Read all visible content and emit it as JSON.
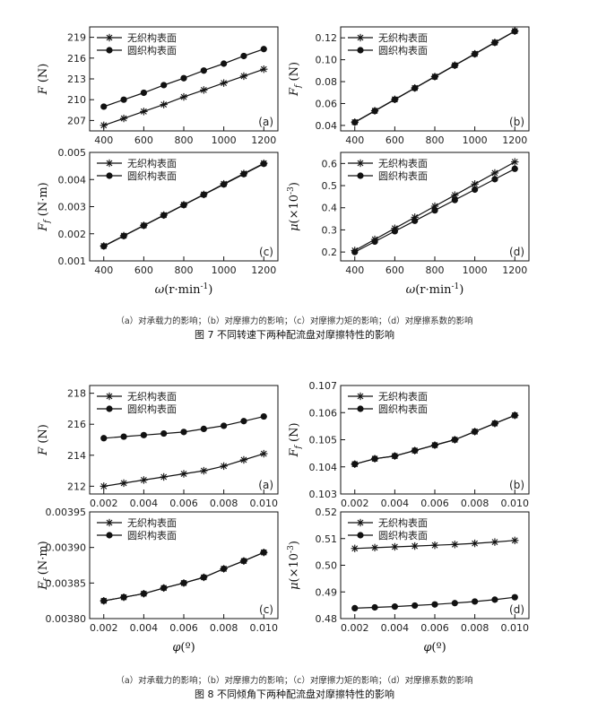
{
  "figures": [
    {
      "caption_sub": "（a）对承载力的影响；（b）对摩擦力的影响；（c）对摩擦力矩的影响；（d）对摩擦系数的影响",
      "caption_main": "图 7 不同转速下两种配流盘对摩擦特性的影响"
    },
    {
      "caption_sub": "（a）对承载力的影响；（b）对摩擦力的影响；（c）对摩擦力矩的影响；（d）对摩擦系数的影响",
      "caption_main": "图 8 不同倾角下两种配流盘对摩擦特性的影响"
    }
  ],
  "chart_data": [
    {
      "id": "f7a",
      "panel_label": "(a)",
      "type": "line",
      "ylabel": "F (N)",
      "xlabel": "",
      "x": [
        400,
        500,
        600,
        700,
        800,
        900,
        1000,
        1100,
        1200
      ],
      "xticks": [
        400,
        600,
        800,
        1000,
        1200
      ],
      "yticks": [
        207,
        210,
        213,
        216,
        219
      ],
      "ylim": [
        205.5,
        220.5
      ],
      "legend_position": "top-left",
      "series": [
        {
          "name": "无织构表面",
          "marker": "star",
          "values": [
            206.3,
            207.3,
            208.3,
            209.3,
            210.4,
            211.4,
            212.4,
            213.4,
            214.4
          ]
        },
        {
          "name": "圆织构表面",
          "marker": "circle",
          "values": [
            209.0,
            210.0,
            211.0,
            212.1,
            213.1,
            214.2,
            215.2,
            216.3,
            217.3
          ]
        }
      ]
    },
    {
      "id": "f7b",
      "panel_label": "(b)",
      "type": "line",
      "ylabel": "Ff (N)",
      "xlabel": "",
      "x": [
        400,
        500,
        600,
        700,
        800,
        900,
        1000,
        1100,
        1200
      ],
      "xticks": [
        400,
        600,
        800,
        1000,
        1200
      ],
      "yticks": [
        0.04,
        0.06,
        0.08,
        0.1,
        0.12
      ],
      "ylim": [
        0.035,
        0.13
      ],
      "legend_position": "top-left",
      "series": [
        {
          "name": "无织构表面",
          "marker": "star",
          "values": [
            0.043,
            0.0534,
            0.0638,
            0.0742,
            0.0846,
            0.095,
            0.1054,
            0.1158,
            0.1262
          ]
        },
        {
          "name": "圆织构表面",
          "marker": "circle",
          "values": [
            0.0428,
            0.0532,
            0.0636,
            0.074,
            0.0844,
            0.0948,
            0.1052,
            0.1156,
            0.126
          ]
        }
      ]
    },
    {
      "id": "f7c",
      "panel_label": "(c)",
      "type": "line",
      "ylabel": "Ff (N·m)",
      "xlabel": "ω(r·min-1)",
      "x": [
        400,
        500,
        600,
        700,
        800,
        900,
        1000,
        1100,
        1200
      ],
      "xticks": [
        400,
        600,
        800,
        1000,
        1200
      ],
      "yticks": [
        0.001,
        0.002,
        0.003,
        0.004,
        0.005
      ],
      "ylim": [
        0.001,
        0.005
      ],
      "legend_position": "top-left",
      "series": [
        {
          "name": "无织构表面",
          "marker": "star",
          "values": [
            0.00155,
            0.00193,
            0.00231,
            0.00269,
            0.00307,
            0.00345,
            0.00384,
            0.00422,
            0.0046
          ]
        },
        {
          "name": "圆织构表面",
          "marker": "circle",
          "values": [
            0.00154,
            0.00192,
            0.0023,
            0.00268,
            0.00306,
            0.00344,
            0.00382,
            0.0042,
            0.00458
          ]
        }
      ]
    },
    {
      "id": "f7d",
      "panel_label": "(d)",
      "type": "line",
      "ylabel": "μ(×10-3)",
      "xlabel": "ω(r·min-1)",
      "x": [
        400,
        500,
        600,
        700,
        800,
        900,
        1000,
        1100,
        1200
      ],
      "xticks": [
        400,
        600,
        800,
        1000,
        1200
      ],
      "yticks": [
        0.2,
        0.3,
        0.4,
        0.5,
        0.6
      ],
      "ylim": [
        0.16,
        0.65
      ],
      "legend_position": "top-left",
      "series": [
        {
          "name": "无织构表面",
          "marker": "star",
          "values": [
            0.207,
            0.257,
            0.307,
            0.357,
            0.407,
            0.457,
            0.507,
            0.557,
            0.607
          ]
        },
        {
          "name": "圆织构表面",
          "marker": "circle",
          "values": [
            0.2,
            0.247,
            0.294,
            0.341,
            0.388,
            0.435,
            0.482,
            0.529,
            0.576
          ]
        }
      ]
    },
    {
      "id": "f8a",
      "panel_label": "(a)",
      "type": "line",
      "ylabel": "F (N)",
      "xlabel": "",
      "x": [
        0.002,
        0.003,
        0.004,
        0.005,
        0.006,
        0.007,
        0.008,
        0.009,
        0.01
      ],
      "xticks": [
        0.002,
        0.004,
        0.006,
        0.008,
        0.01
      ],
      "yticks": [
        212,
        214,
        216,
        218
      ],
      "ylim": [
        211.5,
        218.5
      ],
      "legend_position": "top-left",
      "series": [
        {
          "name": "无织构表面",
          "marker": "star",
          "values": [
            212.0,
            212.2,
            212.4,
            212.6,
            212.8,
            213.0,
            213.3,
            213.7,
            214.1
          ]
        },
        {
          "name": "圆织构表面",
          "marker": "circle",
          "values": [
            215.1,
            215.2,
            215.3,
            215.4,
            215.5,
            215.7,
            215.9,
            216.2,
            216.5
          ]
        }
      ]
    },
    {
      "id": "f8b",
      "panel_label": "(b)",
      "type": "line",
      "ylabel": "Ff (N)",
      "xlabel": "",
      "x": [
        0.002,
        0.003,
        0.004,
        0.005,
        0.006,
        0.007,
        0.008,
        0.009,
        0.01
      ],
      "xticks": [
        0.002,
        0.004,
        0.006,
        0.008,
        0.01
      ],
      "yticks": [
        0.103,
        0.104,
        0.105,
        0.106,
        0.107
      ],
      "ylim": [
        0.103,
        0.107
      ],
      "legend_position": "top-left",
      "series": [
        {
          "name": "无织构表面",
          "marker": "star",
          "values": [
            0.1041,
            0.1043,
            0.1044,
            0.1046,
            0.1048,
            0.105,
            0.1053,
            0.1056,
            0.1059
          ]
        },
        {
          "name": "圆织构表面",
          "marker": "circle",
          "values": [
            0.1041,
            0.1043,
            0.1044,
            0.1046,
            0.1048,
            0.105,
            0.1053,
            0.1056,
            0.1059
          ]
        }
      ]
    },
    {
      "id": "f8c",
      "panel_label": "(c)",
      "type": "line",
      "ylabel": "Ff (N·m)",
      "xlabel": "φ(º)",
      "x": [
        0.002,
        0.003,
        0.004,
        0.005,
        0.006,
        0.007,
        0.008,
        0.009,
        0.01
      ],
      "xticks": [
        0.002,
        0.004,
        0.006,
        0.008,
        0.01
      ],
      "yticks": [
        0.0038,
        0.00385,
        0.0039,
        0.00395
      ],
      "ylim": [
        0.0038,
        0.00395
      ],
      "tick_format": [
        "0.00380",
        "0.00385",
        "0.00390",
        "0.00395"
      ],
      "legend_position": "top-left",
      "series": [
        {
          "name": "无织构表面",
          "marker": "star",
          "values": [
            0.003825,
            0.00383,
            0.003835,
            0.003843,
            0.00385,
            0.003858,
            0.00387,
            0.003881,
            0.003893
          ]
        },
        {
          "name": "圆织构表面",
          "marker": "circle",
          "values": [
            0.003825,
            0.00383,
            0.003835,
            0.003843,
            0.00385,
            0.003858,
            0.00387,
            0.003881,
            0.003893
          ]
        }
      ]
    },
    {
      "id": "f8d",
      "panel_label": "(d)",
      "type": "line",
      "ylabel": "μ(×10-3)",
      "xlabel": "φ(º)",
      "x": [
        0.002,
        0.003,
        0.004,
        0.005,
        0.006,
        0.007,
        0.008,
        0.009,
        0.01
      ],
      "xticks": [
        0.002,
        0.004,
        0.006,
        0.008,
        0.01
      ],
      "yticks": [
        0.48,
        0.49,
        0.5,
        0.51,
        0.52
      ],
      "ylim": [
        0.48,
        0.52
      ],
      "legend_position": "top-left",
      "series": [
        {
          "name": "无织构表面",
          "marker": "star",
          "values": [
            0.5063,
            0.5066,
            0.5069,
            0.5072,
            0.5075,
            0.5078,
            0.5082,
            0.5087,
            0.5093
          ]
        },
        {
          "name": "圆织构表面",
          "marker": "circle",
          "values": [
            0.4839,
            0.4842,
            0.4845,
            0.4849,
            0.4853,
            0.4858,
            0.4864,
            0.4871,
            0.488
          ]
        }
      ]
    }
  ]
}
